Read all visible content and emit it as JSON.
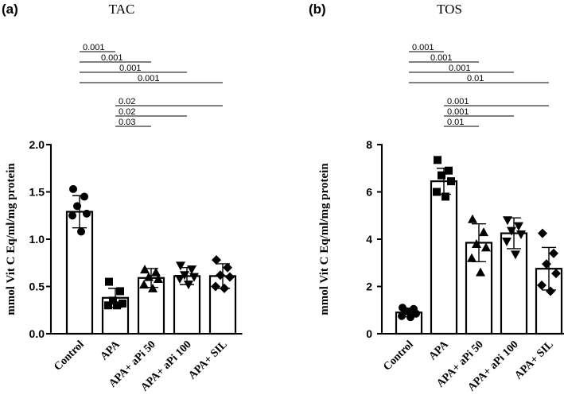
{
  "chart_data": [
    {
      "type": "bar",
      "panel": "(a)",
      "title": "TAC",
      "ylabel": "mmol Vit C Eq/ml/mg protein",
      "ylim": [
        0,
        2.0
      ],
      "yticks": [
        "0.0",
        "0.5",
        "1.0",
        "1.5",
        "2.0"
      ],
      "categories": [
        "Control",
        "APA",
        "APA+ aPi 50",
        "APA+ aPi 100",
        "APA+ SIL"
      ],
      "values": [
        1.29,
        0.38,
        0.59,
        0.61,
        0.61
      ],
      "errors": [
        0.17,
        0.1,
        0.1,
        0.09,
        0.13
      ],
      "markers": [
        "circle",
        "square",
        "triangle",
        "triangle-down",
        "diamond"
      ],
      "points": [
        [
          1.53,
          1.45,
          1.35,
          1.27,
          1.25,
          1.08
        ],
        [
          0.55,
          0.45,
          0.35,
          0.32,
          0.3,
          0.3
        ],
        [
          0.68,
          0.65,
          0.6,
          0.58,
          0.52,
          0.48
        ],
        [
          0.72,
          0.68,
          0.62,
          0.6,
          0.58,
          0.52
        ],
        [
          0.78,
          0.7,
          0.62,
          0.6,
          0.5,
          0.48
        ]
      ],
      "comparisons": [
        {
          "from": 0,
          "to": 1,
          "label": "0.001"
        },
        {
          "from": 0,
          "to": 2,
          "label": "0.001"
        },
        {
          "from": 0,
          "to": 3,
          "label": "0.001"
        },
        {
          "from": 0,
          "to": 4,
          "label": "0.001"
        },
        {
          "from": 1,
          "to": 4,
          "label": "0.02"
        },
        {
          "from": 1,
          "to": 3,
          "label": "0.02"
        },
        {
          "from": 1,
          "to": 2,
          "label": "0.03"
        }
      ]
    },
    {
      "type": "bar",
      "panel": "(b)",
      "title": "TOS",
      "ylabel": "mmol Vit C Eq/ml/mg protein",
      "ylim": [
        0,
        8
      ],
      "yticks": [
        "0",
        "2",
        "4",
        "6",
        "8"
      ],
      "categories": [
        "Control",
        "APA",
        "APA+ aPi 50",
        "APA+ aPi 100",
        "APA+ SIL"
      ],
      "values": [
        0.9,
        6.45,
        3.85,
        4.25,
        2.75
      ],
      "errors": [
        0.18,
        0.55,
        0.8,
        0.65,
        0.9
      ],
      "markers": [
        "circle",
        "square",
        "triangle",
        "triangle-down",
        "diamond"
      ],
      "points": [
        [
          1.1,
          1.05,
          0.95,
          0.85,
          0.75,
          0.7
        ],
        [
          7.35,
          6.9,
          6.7,
          6.45,
          6.0,
          5.8
        ],
        [
          4.85,
          4.3,
          3.8,
          3.65,
          3.2,
          2.6
        ],
        [
          4.8,
          4.55,
          4.35,
          4.2,
          3.9,
          3.35
        ],
        [
          4.25,
          3.4,
          2.95,
          2.55,
          2.05,
          1.8
        ]
      ],
      "comparisons": [
        {
          "from": 0,
          "to": 1,
          "label": "0.001"
        },
        {
          "from": 0,
          "to": 2,
          "label": "0.001"
        },
        {
          "from": 0,
          "to": 3,
          "label": "0.001"
        },
        {
          "from": 0,
          "to": 4,
          "label": "0.01"
        },
        {
          "from": 1,
          "to": 4,
          "label": "0.001"
        },
        {
          "from": 1,
          "to": 3,
          "label": "0.001"
        },
        {
          "from": 1,
          "to": 2,
          "label": "0.01"
        }
      ]
    }
  ]
}
